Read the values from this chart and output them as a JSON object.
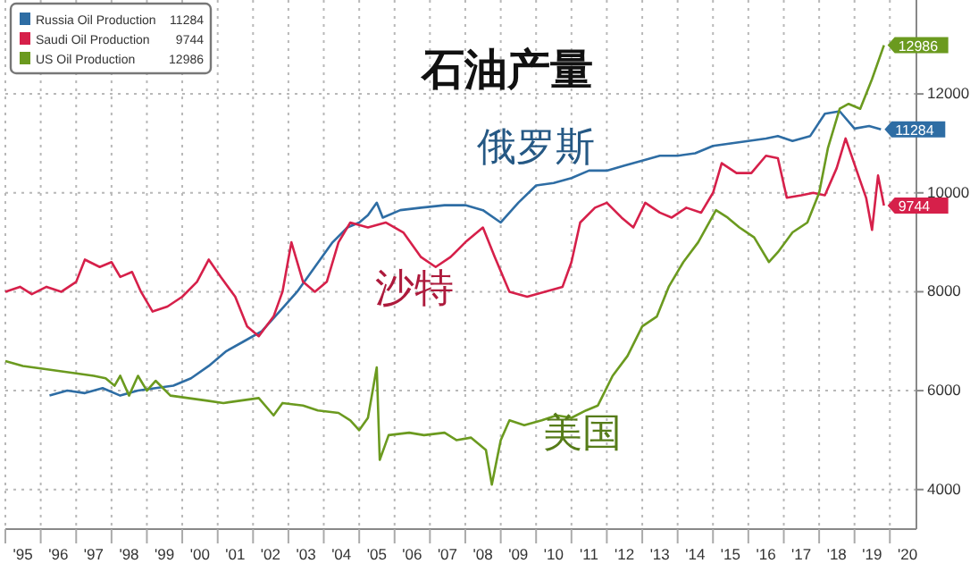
{
  "chart_data": {
    "type": "line",
    "title": "石油产量",
    "grid": true,
    "legend": "top left",
    "tick_labels": "xy",
    "xlim": [
      "1995-01",
      "2020-10"
    ],
    "xticks": [
      {
        "value": "1995",
        "label": null
      },
      {
        "value": "1996",
        "label": null
      },
      {
        "value": "1997",
        "label": null
      },
      {
        "value": "1998",
        "label": null
      },
      {
        "value": "1999",
        "label": null
      },
      {
        "value": "2000",
        "label": null
      },
      {
        "value": "2001",
        "label": null
      },
      {
        "value": "2002",
        "label": null
      },
      {
        "value": "2003",
        "label": null
      },
      {
        "value": "2004",
        "label": null
      },
      {
        "value": "2005",
        "label": null
      },
      {
        "value": "2006",
        "label": null
      },
      {
        "value": "2007",
        "label": null
      },
      {
        "value": "2008",
        "label": null
      },
      {
        "value": "2009",
        "label": null
      },
      {
        "value": "2010",
        "label": null
      },
      {
        "value": "2011",
        "label": null
      },
      {
        "value": "2012",
        "label": null
      },
      {
        "value": "2013",
        "label": null
      },
      {
        "value": "2014",
        "label": null
      },
      {
        "value": "2015",
        "label": null
      },
      {
        "value": "2016",
        "label": null
      },
      {
        "value": "2017",
        "label": null
      },
      {
        "value": "2018",
        "label": null
      },
      {
        "value": "2019",
        "label": null
      },
      {
        "value": "2020",
        "label": null
      },
      {
        "value": "1995-07",
        "label": "'95"
      },
      {
        "value": "1996-07",
        "label": "'96"
      },
      {
        "value": "1997-07",
        "label": "'97"
      },
      {
        "value": "1998-07",
        "label": "'98"
      },
      {
        "value": "1999-07",
        "label": "'99"
      },
      {
        "value": "2000-07",
        "label": "'00"
      },
      {
        "value": "2001-07",
        "label": "'01"
      },
      {
        "value": "2002-07",
        "label": "'02"
      },
      {
        "value": "2003-07",
        "label": "'03"
      },
      {
        "value": "2004-07",
        "label": "'04"
      },
      {
        "value": "2005-07",
        "label": "'05"
      },
      {
        "value": "2006-07",
        "label": "'06"
      },
      {
        "value": "2007-07",
        "label": "'07"
      },
      {
        "value": "2008-07",
        "label": "'08"
      },
      {
        "value": "2009-07",
        "label": "'09"
      },
      {
        "value": "2010-07",
        "label": "'10"
      },
      {
        "value": "2011-07",
        "label": "'11"
      },
      {
        "value": "2012-07",
        "label": "'12"
      },
      {
        "value": "2013-07",
        "label": "'13"
      },
      {
        "value": "2014-07",
        "label": "'14"
      },
      {
        "value": "2015-07",
        "label": "'15"
      },
      {
        "value": "2016-07",
        "label": "'16"
      },
      {
        "value": "2017-07",
        "label": "'17"
      },
      {
        "value": "2018-07",
        "label": "'18"
      },
      {
        "value": "2019-07",
        "label": "'19"
      },
      {
        "value": "2020-07",
        "label": "'20"
      }
    ],
    "ylim": [
      3200,
      13900
    ],
    "yticks": [
      4000,
      6000,
      8000,
      10000,
      12000
    ],
    "annotations": [
      "俄罗斯",
      "沙特",
      "美国"
    ],
    "series": [
      {
        "name": "Russia Oil Production",
        "color": "#2e6da4",
        "x": [
          "1996-04",
          "1996-10",
          "1997-04",
          "1997-10",
          "1998-04",
          "1998-10",
          "1999-04",
          "1999-10",
          "2000-04",
          "2000-10",
          "2001-04",
          "2001-10",
          "2002-04",
          "2002-10",
          "2003-04",
          "2003-10",
          "2004-04",
          "2004-09",
          "2005-01",
          "2005-04",
          "2005-07",
          "2005-09",
          "2006-03",
          "2006-10",
          "2007-06",
          "2008-01",
          "2008-07",
          "2009-01",
          "2009-07",
          "2010-01",
          "2010-07",
          "2011-01",
          "2011-07",
          "2012-01",
          "2012-07",
          "2013-01",
          "2013-07",
          "2014-01",
          "2014-07",
          "2015-01",
          "2015-07",
          "2016-01",
          "2016-07",
          "2016-11",
          "2017-04",
          "2017-10",
          "2018-03",
          "2018-08",
          "2019-01",
          "2019-06",
          "2019-10"
        ],
        "values": [
          5900,
          6000,
          5950,
          6050,
          5900,
          6000,
          6050,
          6100,
          6250,
          6500,
          6800,
          7000,
          7200,
          7600,
          8000,
          8500,
          9000,
          9300,
          9400,
          9550,
          9800,
          9500,
          9650,
          9700,
          9750,
          9750,
          9650,
          9400,
          9800,
          10150,
          10200,
          10300,
          10450,
          10450,
          10550,
          10650,
          10750,
          10750,
          10800,
          10950,
          11000,
          11050,
          11100,
          11150,
          11050,
          11150,
          11600,
          11650,
          11300,
          11350,
          11284
        ],
        "value_labels": [
          null,
          null,
          null,
          null,
          null,
          null,
          null,
          null,
          null,
          null,
          null,
          null,
          null,
          null,
          null,
          null,
          null,
          null,
          null,
          null,
          null,
          null,
          null,
          null,
          null,
          null,
          null,
          null,
          null,
          null,
          null,
          null,
          null,
          null,
          null,
          null,
          null,
          null,
          null,
          null,
          null,
          null,
          null,
          null,
          null,
          null,
          null,
          null,
          null,
          null,
          "11284"
        ]
      },
      {
        "name": "Saudi Oil Production",
        "color": "#d6204a",
        "x": [
          "1995-01",
          "1995-06",
          "1995-10",
          "1996-03",
          "1996-08",
          "1997-01",
          "1997-04",
          "1997-09",
          "1998-01",
          "1998-04",
          "1998-08",
          "1998-11",
          "1999-03",
          "1999-08",
          "2000-01",
          "2000-06",
          "2000-10",
          "2001-02",
          "2001-07",
          "2001-11",
          "2002-03",
          "2002-08",
          "2002-11",
          "2003-02",
          "2003-06",
          "2003-10",
          "2004-02",
          "2004-06",
          "2004-10",
          "2005-04",
          "2005-10",
          "2006-04",
          "2006-10",
          "2007-03",
          "2007-08",
          "2008-01",
          "2008-07",
          "2008-11",
          "2009-04",
          "2009-10",
          "2010-04",
          "2010-10",
          "2011-01",
          "2011-04",
          "2011-09",
          "2012-01",
          "2012-06",
          "2012-10",
          "2013-02",
          "2013-07",
          "2013-11",
          "2014-04",
          "2014-09",
          "2015-01",
          "2015-04",
          "2015-09",
          "2016-02",
          "2016-07",
          "2016-11",
          "2017-02",
          "2017-07",
          "2017-11",
          "2018-03",
          "2018-07",
          "2018-10",
          "2019-02",
          "2019-05",
          "2019-07",
          "2019-09",
          "2019-11"
        ],
        "values": [
          8000,
          8100,
          7950,
          8100,
          8000,
          8200,
          8650,
          8500,
          8600,
          8300,
          8400,
          8000,
          7600,
          7700,
          7900,
          8200,
          8650,
          8300,
          7900,
          7300,
          7100,
          7500,
          8000,
          9000,
          8200,
          8000,
          8200,
          9000,
          9400,
          9300,
          9400,
          9200,
          8700,
          8500,
          8700,
          9000,
          9300,
          8700,
          8000,
          7900,
          8000,
          8100,
          8600,
          9400,
          9700,
          9800,
          9500,
          9300,
          9800,
          9600,
          9500,
          9700,
          9600,
          10000,
          10600,
          10400,
          10400,
          10750,
          10700,
          9900,
          9950,
          10000,
          9950,
          10500,
          11100,
          10400,
          9900,
          9250,
          10350,
          9744
        ],
        "value_labels": [
          null,
          null,
          null,
          null,
          null,
          null,
          null,
          null,
          null,
          null,
          null,
          null,
          null,
          null,
          null,
          null,
          null,
          null,
          null,
          null,
          null,
          null,
          null,
          null,
          null,
          null,
          null,
          null,
          null,
          null,
          null,
          null,
          null,
          null,
          null,
          null,
          null,
          null,
          null,
          null,
          null,
          null,
          null,
          null,
          null,
          null,
          null,
          null,
          null,
          null,
          null,
          null,
          null,
          null,
          null,
          null,
          null,
          null,
          null,
          null,
          null,
          null,
          null,
          null,
          null,
          null,
          null,
          null,
          null,
          "9744"
        ]
      },
      {
        "name": "US Oil Production",
        "color": "#6b9a1f",
        "x": [
          "1995-01",
          "1995-07",
          "1996-01",
          "1996-07",
          "1997-01",
          "1997-07",
          "1997-11",
          "1998-02",
          "1998-04",
          "1998-07",
          "1998-10",
          "1999-01",
          "1999-04",
          "1999-09",
          "2000-03",
          "2000-09",
          "2001-03",
          "2001-09",
          "2002-03",
          "2002-08",
          "2002-11",
          "2003-06",
          "2003-11",
          "2004-06",
          "2004-10",
          "2005-01",
          "2005-04",
          "2005-07",
          "2005-08",
          "2005-11",
          "2006-06",
          "2006-11",
          "2007-06",
          "2007-10",
          "2008-03",
          "2008-08",
          "2008-10",
          "2009-01",
          "2009-04",
          "2009-09",
          "2010-03",
          "2010-08",
          "2011-01",
          "2011-06",
          "2011-10",
          "2012-03",
          "2012-08",
          "2013-01",
          "2013-06",
          "2013-10",
          "2014-03",
          "2014-08",
          "2015-02",
          "2015-06",
          "2015-10",
          "2016-03",
          "2016-08",
          "2016-11",
          "2017-04",
          "2017-09",
          "2018-01",
          "2018-04",
          "2018-08",
          "2018-11",
          "2019-03",
          "2019-07",
          "2019-11"
        ],
        "values": [
          6600,
          6500,
          6450,
          6400,
          6350,
          6300,
          6250,
          6100,
          6300,
          5900,
          6300,
          6000,
          6200,
          5900,
          5850,
          5800,
          5750,
          5800,
          5850,
          5500,
          5750,
          5700,
          5600,
          5550,
          5400,
          5200,
          5450,
          6470,
          4600,
          5100,
          5150,
          5100,
          5150,
          5000,
          5050,
          4800,
          4100,
          5000,
          5400,
          5300,
          5400,
          5500,
          5450,
          5600,
          5700,
          6300,
          6700,
          7300,
          7500,
          8100,
          8600,
          9000,
          9650,
          9500,
          9300,
          9100,
          8600,
          8800,
          9200,
          9400,
          10000,
          10900,
          11700,
          11800,
          11700,
          12300,
          12986
        ],
        "value_labels": [
          null,
          null,
          null,
          null,
          null,
          null,
          null,
          null,
          null,
          null,
          null,
          null,
          null,
          null,
          null,
          null,
          null,
          null,
          null,
          null,
          null,
          null,
          null,
          null,
          null,
          null,
          null,
          null,
          null,
          null,
          null,
          null,
          null,
          null,
          null,
          null,
          null,
          null,
          null,
          null,
          null,
          null,
          null,
          null,
          null,
          null,
          null,
          null,
          null,
          null,
          null,
          null,
          null,
          null,
          null,
          null,
          null,
          null,
          null,
          null,
          null,
          null,
          null,
          null,
          null,
          null,
          "12986"
        ]
      }
    ]
  }
}
